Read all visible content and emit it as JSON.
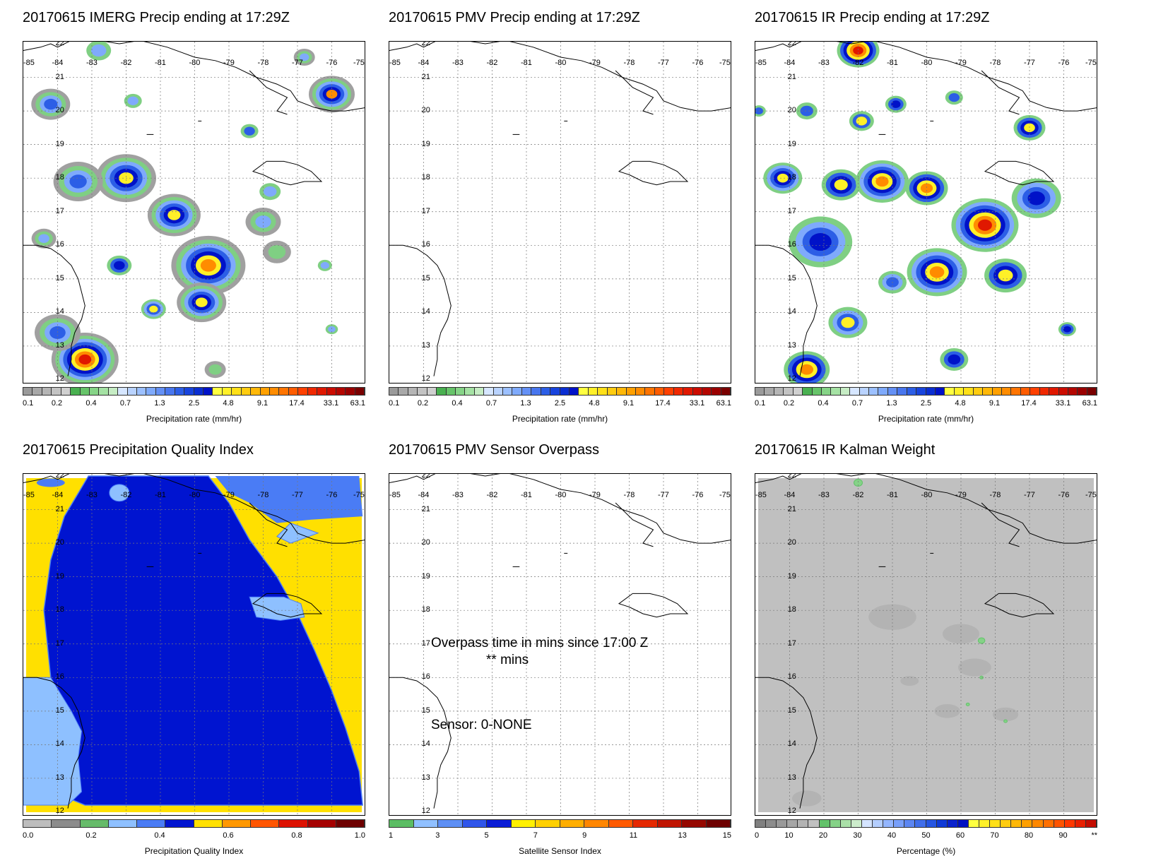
{
  "panels": [
    {
      "title": "20170615 IMERG Precip ending at 17:29Z",
      "cbar_title": "Precipitation rate (mm/hr)",
      "palette": "precip",
      "ticks": [
        "0.1",
        "0.2",
        "0.4",
        "0.7",
        "1.3",
        "2.5",
        "4.8",
        "9.1",
        "17.4",
        "33.1",
        "63.1"
      ]
    },
    {
      "title": "20170615 PMV Precip ending at 17:29Z",
      "cbar_title": "Precipitation rate (mm/hr)",
      "palette": "precip",
      "ticks": [
        "0.1",
        "0.2",
        "0.4",
        "0.7",
        "1.3",
        "2.5",
        "4.8",
        "9.1",
        "17.4",
        "33.1",
        "63.1"
      ]
    },
    {
      "title": "20170615 IR Precip ending at 17:29Z",
      "cbar_title": "Precipitation rate (mm/hr)",
      "palette": "precip",
      "ticks": [
        "0.1",
        "0.2",
        "0.4",
        "0.7",
        "1.3",
        "2.5",
        "4.8",
        "9.1",
        "17.4",
        "33.1",
        "63.1"
      ]
    },
    {
      "title": "20170615 Precipitation Quality Index",
      "cbar_title": "Precipitation Quality Index",
      "palette": "quality",
      "ticks": [
        "0.0",
        "0.2",
        "0.4",
        "0.6",
        "0.8",
        "1.0"
      ]
    },
    {
      "title": "20170615 PMV Sensor Overpass",
      "cbar_title": "Satellite Sensor Index",
      "palette": "sensor",
      "ticks": [
        "1",
        "3",
        "5",
        "7",
        "9",
        "11",
        "13",
        "15"
      ],
      "overlay": {
        "line1": "Overpass time in mins since 17:00 Z",
        "line2": "** mins",
        "line3": "Sensor:   0-NONE"
      }
    },
    {
      "title": "20170615 IR Kalman Weight",
      "cbar_title": "Percentage (%)",
      "palette": "percent",
      "ticks": [
        "0",
        "10",
        "20",
        "30",
        "40",
        "50",
        "60",
        "70",
        "80",
        "90",
        "**"
      ]
    }
  ],
  "lon_labels": [
    "-85",
    "-84",
    "-83",
    "-82",
    "-81",
    "-80",
    "-79",
    "-78",
    "-77",
    "-76",
    "-75"
  ],
  "lat_labels": [
    "22",
    "21",
    "20",
    "19",
    "18",
    "17",
    "16",
    "15",
    "14",
    "13",
    "12"
  ],
  "palettes": {
    "precip": [
      "#9a9a9a",
      "#a8a8a8",
      "#b5b5b5",
      "#c3c3c3",
      "#d0d0d0",
      "#49b050",
      "#67c46a",
      "#86d487",
      "#a5e2a4",
      "#c6ecc4",
      "#d6e6ff",
      "#b9d3ff",
      "#9cc0ff",
      "#7faafc",
      "#6490f5",
      "#4876ee",
      "#2c5ee6",
      "#1844dd",
      "#0a2ed2",
      "#0012c8",
      "#ffff40",
      "#fff028",
      "#ffe018",
      "#ffcc10",
      "#ffb808",
      "#ffa000",
      "#ff8c00",
      "#ff7400",
      "#ff5c00",
      "#ff4000",
      "#f02800",
      "#e01800",
      "#cc0c00",
      "#b40600",
      "#9a0000",
      "#7a0000"
    ],
    "quality": [
      "#bdbdbd",
      "#8c8c8c",
      "#66bb6a",
      "#8ec0ff",
      "#4a7cf5",
      "#0014d0",
      "#ffe000",
      "#ff9800",
      "#ff5500",
      "#dd1100",
      "#a50000",
      "#6e0000"
    ],
    "sensor": [
      "#5bbd63",
      "#90c0ff",
      "#5d8ff5",
      "#2f55ea",
      "#0a1cd6",
      "#fff000",
      "#ffd000",
      "#ffae00",
      "#ff8600",
      "#ff5a00",
      "#e52800",
      "#c01400",
      "#960800",
      "#6e0000"
    ],
    "percent": [
      "#808080",
      "#8c8c8c",
      "#999999",
      "#a6a6a6",
      "#b3b3b3",
      "#c0c0c0",
      "#62c26a",
      "#85d287",
      "#aae0a8",
      "#cceccb",
      "#d4e4ff",
      "#b4ceff",
      "#94b6ff",
      "#789ffa",
      "#5c86f2",
      "#406eea",
      "#2555e2",
      "#0f3ad7",
      "#0a22cc",
      "#0010c2",
      "#ffff40",
      "#fff028",
      "#ffe018",
      "#ffcc10",
      "#ffb808",
      "#ffa000",
      "#ff8800",
      "#ff7000",
      "#ff5400",
      "#ff3800",
      "#e82000",
      "#c40c00"
    ]
  }
}
